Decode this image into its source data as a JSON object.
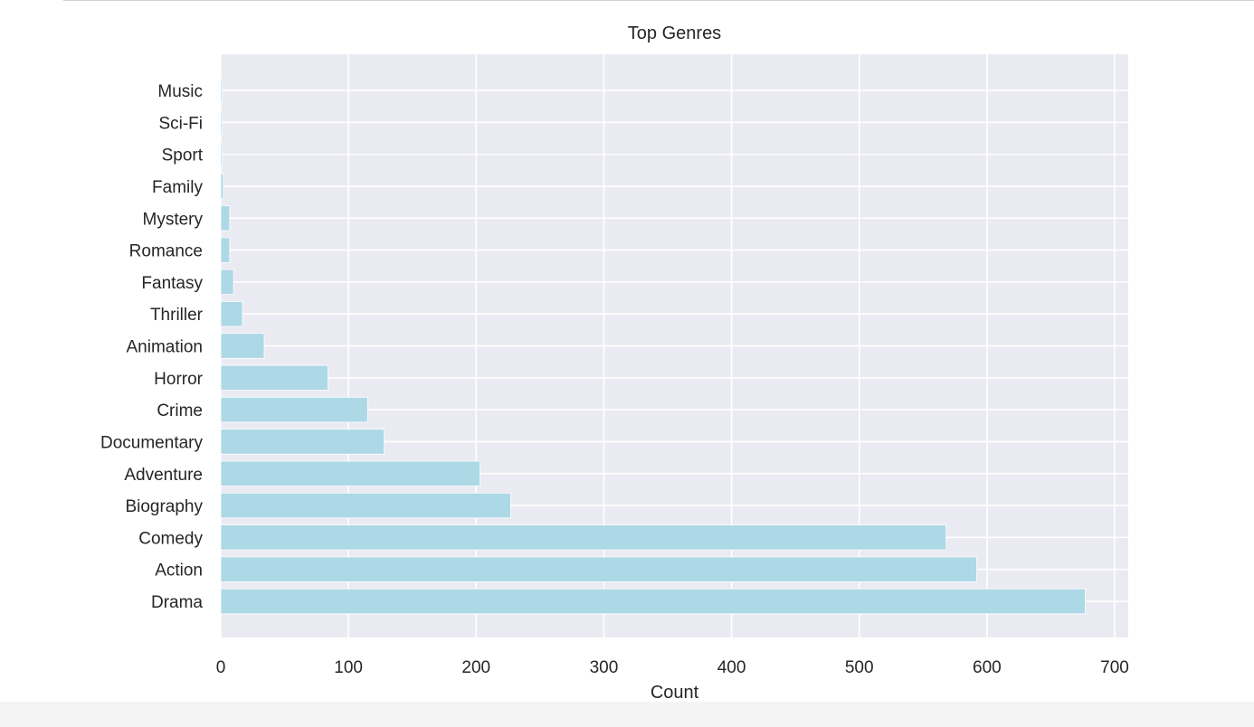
{
  "chart_data": {
    "type": "bar",
    "orientation": "horizontal",
    "title": "Top Genres",
    "xlabel": "Count",
    "ylabel": "",
    "categories": [
      "Drama",
      "Action",
      "Comedy",
      "Biography",
      "Adventure",
      "Documentary",
      "Crime",
      "Horror",
      "Animation",
      "Thriller",
      "Fantasy",
      "Romance",
      "Mystery",
      "Family",
      "Sport",
      "Sci-Fi",
      "Music"
    ],
    "values": [
      677,
      592,
      568,
      227,
      203,
      128,
      115,
      84,
      34,
      17,
      10,
      7,
      7,
      2,
      1,
      1,
      1
    ],
    "xlim": [
      0,
      710
    ],
    "xticks": [
      0,
      100,
      200,
      300,
      400,
      500,
      600,
      700
    ],
    "grid": true,
    "legend": "none",
    "colors": {
      "bar": "#add8e6",
      "plot_background": "#eaeaf2",
      "grid": "#ffffff",
      "text": "#262626"
    }
  }
}
